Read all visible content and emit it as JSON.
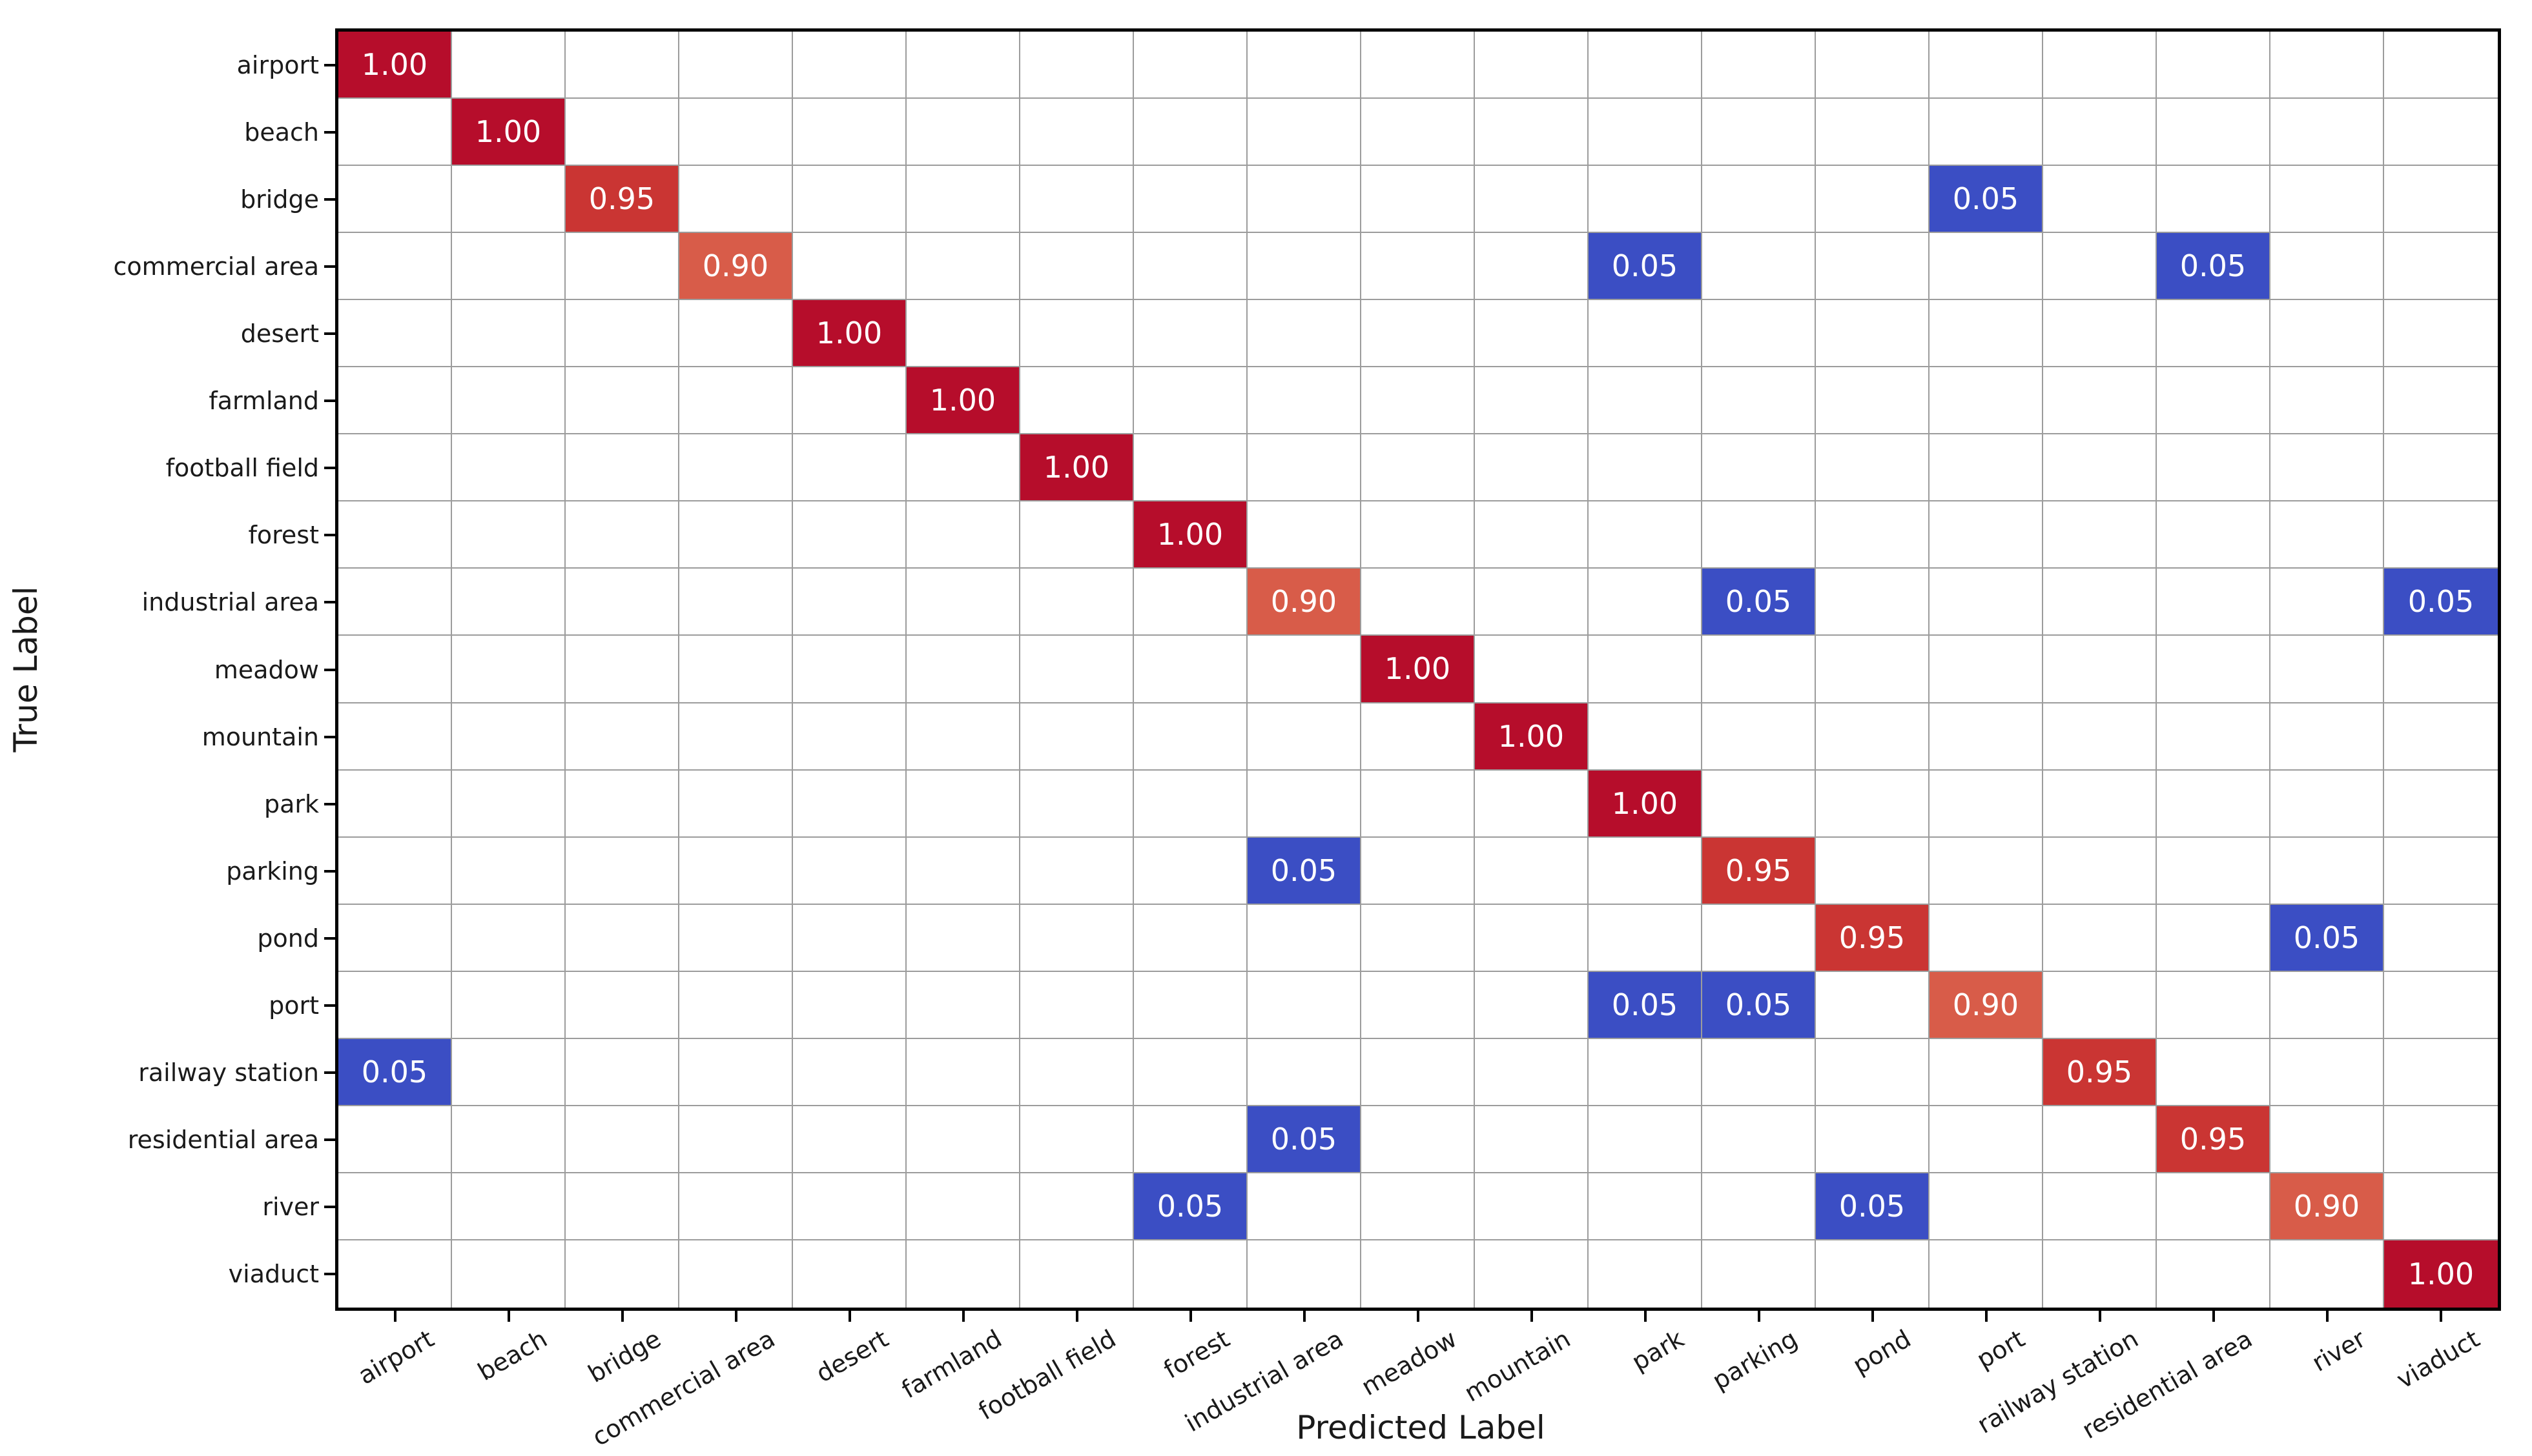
{
  "chart_data": {
    "type": "heatmap",
    "subtype": "confusion-matrix",
    "title": "",
    "xlabel": "Predicted Label",
    "ylabel": "True Label",
    "value_range": [
      0,
      1
    ],
    "grid": true,
    "legend_position": "none",
    "annotation_format": "two-decimals-nonzero-only",
    "classes": [
      "airport",
      "beach",
      "bridge",
      "commercial area",
      "desert",
      "farmland",
      "football field",
      "forest",
      "industrial area",
      "meadow",
      "mountain",
      "park",
      "parking",
      "pond",
      "port",
      "railway station",
      "residential area",
      "river",
      "viaduct"
    ],
    "matrix": [
      [
        1,
        0,
        0,
        0,
        0,
        0,
        0,
        0,
        0,
        0,
        0,
        0,
        0,
        0,
        0,
        0,
        0,
        0,
        0
      ],
      [
        0,
        1,
        0,
        0,
        0,
        0,
        0,
        0,
        0,
        0,
        0,
        0,
        0,
        0,
        0,
        0,
        0,
        0,
        0
      ],
      [
        0,
        0,
        0.95,
        0,
        0,
        0,
        0,
        0,
        0,
        0,
        0,
        0,
        0,
        0,
        0.05,
        0,
        0,
        0,
        0
      ],
      [
        0,
        0,
        0,
        0.9,
        0,
        0,
        0,
        0,
        0,
        0,
        0,
        0.05,
        0,
        0,
        0,
        0,
        0.05,
        0,
        0
      ],
      [
        0,
        0,
        0,
        0,
        1,
        0,
        0,
        0,
        0,
        0,
        0,
        0,
        0,
        0,
        0,
        0,
        0,
        0,
        0
      ],
      [
        0,
        0,
        0,
        0,
        0,
        1,
        0,
        0,
        0,
        0,
        0,
        0,
        0,
        0,
        0,
        0,
        0,
        0,
        0
      ],
      [
        0,
        0,
        0,
        0,
        0,
        0,
        1,
        0,
        0,
        0,
        0,
        0,
        0,
        0,
        0,
        0,
        0,
        0,
        0
      ],
      [
        0,
        0,
        0,
        0,
        0,
        0,
        0,
        1,
        0,
        0,
        0,
        0,
        0,
        0,
        0,
        0,
        0,
        0,
        0
      ],
      [
        0,
        0,
        0,
        0,
        0,
        0,
        0,
        0,
        0.9,
        0,
        0,
        0,
        0.05,
        0,
        0,
        0,
        0,
        0,
        0.05
      ],
      [
        0,
        0,
        0,
        0,
        0,
        0,
        0,
        0,
        0,
        1,
        0,
        0,
        0,
        0,
        0,
        0,
        0,
        0,
        0
      ],
      [
        0,
        0,
        0,
        0,
        0,
        0,
        0,
        0,
        0,
        0,
        1,
        0,
        0,
        0,
        0,
        0,
        0,
        0,
        0
      ],
      [
        0,
        0,
        0,
        0,
        0,
        0,
        0,
        0,
        0,
        0,
        0,
        1,
        0,
        0,
        0,
        0,
        0,
        0,
        0
      ],
      [
        0,
        0,
        0,
        0,
        0,
        0,
        0,
        0,
        0.05,
        0,
        0,
        0,
        0.95,
        0,
        0,
        0,
        0,
        0,
        0
      ],
      [
        0,
        0,
        0,
        0,
        0,
        0,
        0,
        0,
        0,
        0,
        0,
        0,
        0,
        0.95,
        0,
        0,
        0,
        0.05,
        0
      ],
      [
        0,
        0,
        0,
        0,
        0,
        0,
        0,
        0,
        0,
        0,
        0,
        0.05,
        0.05,
        0,
        0.9,
        0,
        0,
        0,
        0
      ],
      [
        0.05,
        0,
        0,
        0,
        0,
        0,
        0,
        0,
        0,
        0,
        0,
        0,
        0,
        0,
        0,
        0.95,
        0,
        0,
        0
      ],
      [
        0,
        0,
        0,
        0,
        0,
        0,
        0,
        0,
        0.05,
        0,
        0,
        0,
        0,
        0,
        0,
        0,
        0.95,
        0,
        0
      ],
      [
        0,
        0,
        0,
        0,
        0,
        0,
        0,
        0.05,
        0,
        0,
        0,
        0,
        0,
        0.05,
        0,
        0,
        0,
        0.9,
        0
      ],
      [
        0,
        0,
        0,
        0,
        0,
        0,
        0,
        0,
        0,
        0,
        0,
        0,
        0,
        0,
        0,
        0,
        0,
        0,
        1
      ]
    ],
    "colors": {
      "1.00": "#b60d2b",
      "0.95": "#ca3533",
      "0.90": "#d85c49",
      "0.05": "#3b4ec4",
      "zero_cell": "#ffffff",
      "annotation_text": "#ffffff",
      "gridline": "#9c9c9c",
      "spine": "#000000",
      "label_text": "#1a1a1a"
    }
  }
}
